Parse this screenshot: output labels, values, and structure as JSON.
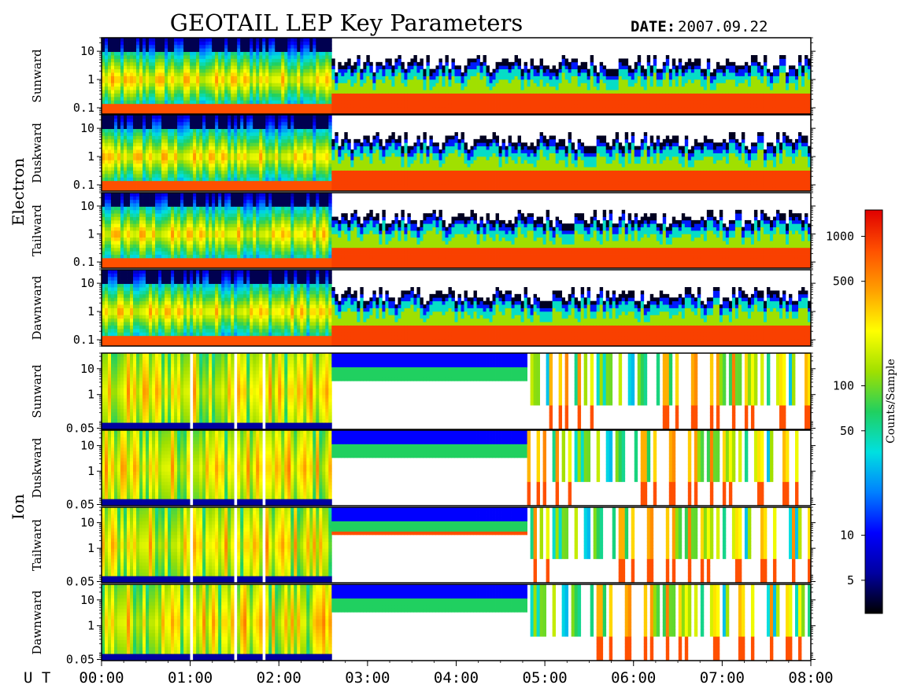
{
  "chart_data": {
    "type": "heatmap",
    "title": "GEOTAIL LEP Key Parameters",
    "date_label": "DATE:",
    "date_value": "2007.09.22",
    "time_axis_label": "U T",
    "time_ticks": [
      "00:00",
      "01:00",
      "02:00",
      "03:00",
      "04:00",
      "05:00",
      "06:00",
      "07:00",
      "08:00"
    ],
    "time_range_hours": [
      0,
      8
    ],
    "groups": [
      {
        "name": "Electron",
        "panels": [
          {
            "label": "Sunward",
            "yticks": [
              "10",
              "1",
              "0.1"
            ],
            "ytick_values": [
              10,
              1,
              0.1
            ],
            "ylim": [
              0.06,
              30
            ],
            "yscale": "log"
          },
          {
            "label": "Duskward",
            "yticks": [
              "10",
              "1",
              "0.1"
            ],
            "ytick_values": [
              10,
              1,
              0.1
            ],
            "ylim": [
              0.06,
              30
            ],
            "yscale": "log"
          },
          {
            "label": "Tailward",
            "yticks": [
              "10",
              "1",
              "0.1"
            ],
            "ytick_values": [
              10,
              1,
              0.1
            ],
            "ylim": [
              0.06,
              30
            ],
            "yscale": "log"
          },
          {
            "label": "Dawnward",
            "yticks": [
              "10",
              "1",
              "0.1"
            ],
            "ytick_values": [
              10,
              1,
              0.1
            ],
            "ylim": [
              0.06,
              30
            ],
            "yscale": "log"
          }
        ]
      },
      {
        "name": "Ion",
        "panels": [
          {
            "label": "Sunward",
            "yticks": [
              "10",
              "1",
              "0.05"
            ],
            "ytick_values": [
              10,
              1,
              0.05
            ],
            "ylim": [
              0.045,
              40
            ],
            "yscale": "log"
          },
          {
            "label": "Duskward",
            "yticks": [
              "10",
              "1",
              "0.05"
            ],
            "ytick_values": [
              10,
              1,
              0.05
            ],
            "ylim": [
              0.045,
              40
            ],
            "yscale": "log"
          },
          {
            "label": "Tailward",
            "yticks": [
              "10",
              "1",
              "0.05"
            ],
            "ytick_values": [
              10,
              1,
              0.05
            ],
            "ylim": [
              0.045,
              40
            ],
            "yscale": "log"
          },
          {
            "label": "Dawnward",
            "yticks": [
              "10",
              "1",
              "0.05"
            ],
            "ytick_values": [
              10,
              1,
              0.05
            ],
            "ylim": [
              0.045,
              40
            ],
            "yscale": "log"
          }
        ]
      }
    ],
    "colorbar": {
      "label": "Counts/Sample",
      "scale": "log",
      "range": [
        3,
        1500
      ],
      "ticks": [
        "1000",
        "500",
        "100",
        "50",
        "10",
        "5"
      ],
      "tick_values": [
        1000,
        500,
        100,
        50,
        10,
        5
      ],
      "colormap": [
        "#000000",
        "#0000a0",
        "#0000ff",
        "#0080ff",
        "#00e0e0",
        "#20d060",
        "#a0e000",
        "#ffff00",
        "#ffa000",
        "#ff5000",
        "#e00000"
      ]
    }
  }
}
